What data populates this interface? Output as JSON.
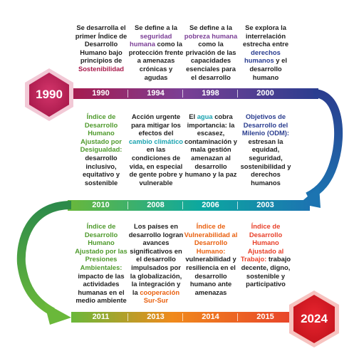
{
  "colors": {
    "maroon": "#a8194b",
    "purple": "#7c3f94",
    "navy": "#2a3d8f",
    "blue": "#1c74b1",
    "teal": "#0ca8a0",
    "green": "#6ab83a",
    "orange": "#f08a1c",
    "red": "#e8412a",
    "text": "#1f1f1f",
    "hl_maroon": "#a8194b",
    "hl_purple": "#7b3f96",
    "hl_green": "#4f9a2d",
    "hl_teal": "#1aa3b0",
    "hl_navy": "#2a3d8f",
    "hl_orange": "#e9600f",
    "hl_red": "#e8412a"
  },
  "badges": {
    "start": "1990",
    "end": "2024"
  },
  "rows": [
    {
      "years": [
        "1990",
        "1994",
        "1998",
        "2000"
      ],
      "descs": [
        [
          {
            "t": "Se desarrolla el primer Índice de Desarrollo Humano bajo principios de "
          },
          {
            "t": "Sostenibilidad",
            "c": "hl_maroon"
          }
        ],
        [
          {
            "t": "Se define a la "
          },
          {
            "t": "seguridad humana",
            "c": "hl_purple"
          },
          {
            "t": " como la protección frente a amenazas crónicas y agudas"
          }
        ],
        [
          {
            "t": "Se define a la "
          },
          {
            "t": "pobreza humana",
            "c": "hl_purple"
          },
          {
            "t": " como la privación de las capacidades esenciales para el desarrollo"
          }
        ],
        [
          {
            "t": "Se explora la interrelación estrecha entre "
          },
          {
            "t": "derechos humanos",
            "c": "hl_navy"
          },
          {
            "t": " y el desarrollo humano"
          }
        ]
      ]
    },
    {
      "years": [
        "2010",
        "2008",
        "2006",
        "2003"
      ],
      "descs": [
        [
          {
            "t": "Índice de Desarrollo Humano Ajustado por Desigualdad:",
            "c": "hl_green"
          },
          {
            "t": " desarrollo inclusivo, equitativo y sostenible"
          }
        ],
        [
          {
            "t": "Acción urgente para mitigar los efectos del "
          },
          {
            "t": "cambio climático",
            "c": "hl_teal"
          },
          {
            "t": " en las condiciones de vida, en especial de gente pobre y vulnerable"
          }
        ],
        [
          {
            "t": "El "
          },
          {
            "t": "agua",
            "c": "hl_teal"
          },
          {
            "t": " cobra importancia: la escasez, contaminación y mala gestión amenazan al desarrollo humano y la paz"
          }
        ],
        [
          {
            "t": "Objetivos de Desarrollo del Milenio (ODM):",
            "c": "hl_navy"
          },
          {
            "t": " estresan la equidad, seguridad, sostenibilidad y derechos humanos"
          }
        ]
      ]
    },
    {
      "years": [
        "2011",
        "2013",
        "2014",
        "2015"
      ],
      "descs": [
        [
          {
            "t": "Índice de Desarrollo Humano Ajustado por las Presiones Ambientales:",
            "c": "hl_green"
          },
          {
            "t": " impacto de las actividades humanas en el medio ambiente"
          }
        ],
        [
          {
            "t": "Los países en desarrollo logran avances significativos en el desarrollo impulsados por la globalización, la integración y la "
          },
          {
            "t": "cooperación Sur-Sur",
            "c": "hl_orange"
          }
        ],
        [
          {
            "t": "Índice de Vulnerabilidad al Desarrollo Humano:",
            "c": "hl_orange"
          },
          {
            "t": " vulnerabilidad y resiliencia en el desarrollo humano ante amenazas"
          }
        ],
        [
          {
            "t": "Índice de Desarrollo Humano Ajustado al Trabajo:",
            "c": "hl_red"
          },
          {
            "t": " trabajo decente, digno, sostenible y participativo"
          }
        ]
      ]
    }
  ]
}
